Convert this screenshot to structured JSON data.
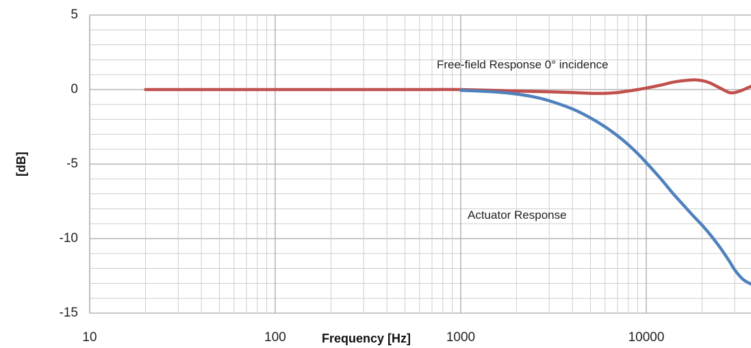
{
  "chart_data": {
    "type": "line",
    "xlabel": "Frequency [Hz]",
    "ylabel": "[dB]",
    "x_scale": "log",
    "xlim": [
      10,
      40000
    ],
    "ylim": [
      -15,
      5
    ],
    "x_ticks": [
      "10",
      "100",
      "1000",
      "10000"
    ],
    "y_ticks": [
      "5",
      "0",
      "-5",
      "-10",
      "-15"
    ],
    "grid": true,
    "colors": {
      "free_field": "#c0504d",
      "actuator": "#4f81bd",
      "grid": "#c8c8c8"
    },
    "annotations": [
      "Free-field Response 0° incidence",
      "Actuator Response"
    ],
    "series": [
      {
        "key": "free_field",
        "label": "Free-field Response 0° incidence",
        "x": [
          20,
          50,
          100,
          200,
          400,
          700,
          1000,
          2000,
          3000,
          4000,
          5000,
          6000,
          7000,
          8000,
          9000,
          10000,
          12000,
          14000,
          16000,
          18000,
          20000,
          22000,
          25000,
          28000,
          30000,
          32000,
          35000,
          38000
        ],
        "y": [
          0,
          0,
          0,
          0,
          0,
          0,
          0,
          -0.1,
          -0.15,
          -0.2,
          -0.25,
          -0.25,
          -0.2,
          -0.1,
          0,
          0.1,
          0.3,
          0.5,
          0.6,
          0.65,
          0.6,
          0.45,
          0.1,
          -0.2,
          -0.2,
          -0.1,
          0.1,
          0.3
        ]
      },
      {
        "key": "actuator",
        "label": "Actuator Response",
        "x": [
          1000,
          1500,
          2000,
          2500,
          3000,
          4000,
          5000,
          6000,
          7000,
          8000,
          9000,
          10000,
          12000,
          14000,
          16000,
          18000,
          20000,
          22000,
          25000,
          28000,
          30000,
          33000,
          36000,
          38000
        ],
        "y": [
          -0.05,
          -0.15,
          -0.3,
          -0.5,
          -0.75,
          -1.3,
          -1.9,
          -2.5,
          -3.1,
          -3.7,
          -4.3,
          -4.9,
          -6.0,
          -7.0,
          -7.8,
          -8.5,
          -9.1,
          -9.7,
          -10.6,
          -11.5,
          -12.1,
          -12.7,
          -13.0,
          -13.1
        ]
      }
    ]
  }
}
